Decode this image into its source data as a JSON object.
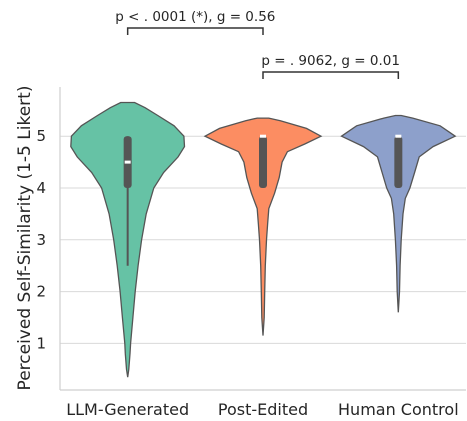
{
  "chart_data": {
    "type": "violin",
    "ylabel": "Perceived Self-Similarity (1-5 Likert)",
    "yticks": [
      1,
      2,
      3,
      4,
      5
    ],
    "ylim": [
      0.1,
      5.95
    ],
    "grid": "horizontal",
    "categories": [
      "LLM-Generated",
      "Post-Edited",
      "Human Control"
    ],
    "colors": [
      "#66c2a5",
      "#fc8d62",
      "#8da0cb"
    ],
    "series": [
      {
        "label": "LLM-Generated",
        "color": "#66c2a5",
        "min": 2.5,
        "q1": 4.0,
        "median": 4.5,
        "q3": 5.0,
        "max": 5.0,
        "density": [
          [
            0.35,
            0.0
          ],
          [
            0.5,
            0.02
          ],
          [
            0.8,
            0.04
          ],
          [
            1.0,
            0.05
          ],
          [
            1.5,
            0.09
          ],
          [
            2.0,
            0.13
          ],
          [
            2.5,
            0.18
          ],
          [
            3.0,
            0.24
          ],
          [
            3.5,
            0.32
          ],
          [
            4.0,
            0.45
          ],
          [
            4.3,
            0.62
          ],
          [
            4.6,
            0.87
          ],
          [
            4.8,
            0.98
          ],
          [
            5.0,
            0.97
          ],
          [
            5.2,
            0.8
          ],
          [
            5.4,
            0.52
          ],
          [
            5.55,
            0.3
          ],
          [
            5.65,
            0.12
          ]
        ]
      },
      {
        "label": "Post-Edited",
        "color": "#fc8d62",
        "min": 4.0,
        "q1": 4.0,
        "median": 5.0,
        "q3": 5.0,
        "max": 5.0,
        "density": [
          [
            1.15,
            0.0
          ],
          [
            1.5,
            0.02
          ],
          [
            2.0,
            0.03
          ],
          [
            2.5,
            0.04
          ],
          [
            3.0,
            0.06
          ],
          [
            3.3,
            0.08
          ],
          [
            3.6,
            0.1
          ],
          [
            3.9,
            0.2
          ],
          [
            4.2,
            0.28
          ],
          [
            4.5,
            0.33
          ],
          [
            4.7,
            0.42
          ],
          [
            4.85,
            0.72
          ],
          [
            5.0,
            1.0
          ],
          [
            5.15,
            0.75
          ],
          [
            5.3,
            0.3
          ],
          [
            5.35,
            0.1
          ]
        ]
      },
      {
        "label": "Human Control",
        "color": "#8da0cb",
        "min": 4.0,
        "q1": 4.0,
        "median": 5.0,
        "q3": 5.0,
        "max": 5.0,
        "density": [
          [
            1.6,
            0.0
          ],
          [
            2.0,
            0.02
          ],
          [
            2.5,
            0.03
          ],
          [
            3.0,
            0.05
          ],
          [
            3.5,
            0.08
          ],
          [
            3.8,
            0.12
          ],
          [
            4.0,
            0.2
          ],
          [
            4.3,
            0.28
          ],
          [
            4.6,
            0.36
          ],
          [
            4.8,
            0.6
          ],
          [
            5.0,
            0.98
          ],
          [
            5.2,
            0.72
          ],
          [
            5.35,
            0.25
          ],
          [
            5.4,
            0.05
          ]
        ]
      }
    ],
    "annotations": [
      {
        "from": "LLM-Generated",
        "to": "Post-Edited",
        "p_text": "p < . 0001 (*),",
        "g_text": "g = 0.56"
      },
      {
        "from": "Post-Edited",
        "to": "Human Control",
        "p_text": "p = . 9062,",
        "g_text": "g = 0.01"
      }
    ]
  }
}
